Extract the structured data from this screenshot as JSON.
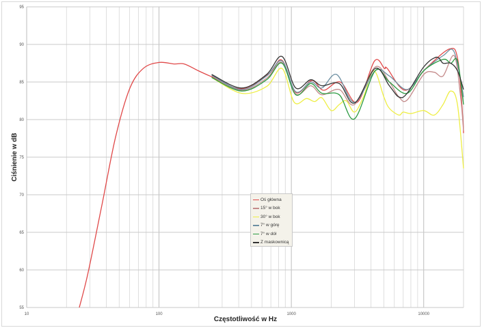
{
  "chart_data": {
    "type": "line",
    "title": "",
    "xlabel": "Częstotliwość w Hz",
    "ylabel": "Ciśnienie w dB",
    "x_scale": "log",
    "xlim": [
      10,
      20000
    ],
    "ylim": [
      55,
      95
    ],
    "x_ticks": [
      "10",
      "100",
      "1000",
      "10000"
    ],
    "y_ticks": [
      "55",
      "60",
      "65",
      "70",
      "75",
      "80",
      "85",
      "90",
      "95"
    ],
    "grid": true,
    "legend_position": "center",
    "series": [
      {
        "name": "Oś główna",
        "color": "#e04848",
        "x": [
          25,
          29,
          37,
          47,
          60,
          76,
          100,
          130,
          155,
          198,
          250,
          420,
          675,
          850,
          1084,
          1430,
          1750,
          2340,
          3150,
          4250,
          5050,
          5300,
          7270,
          10400,
          15700,
          18100,
          19700,
          20000
        ],
        "y": [
          55,
          59.5,
          68.6,
          77.7,
          84.1,
          86.8,
          87.6,
          87.4,
          87.4,
          86.5,
          85.7,
          84.1,
          86.1,
          87.9,
          83.6,
          85.2,
          83.9,
          85.0,
          82.3,
          87.8,
          86.8,
          86.8,
          83.9,
          86.8,
          89.4,
          88.0,
          80.5,
          78.2
        ]
      },
      {
        "name": "15° w bok",
        "color": "#c48a8a",
        "x": [
          250,
          420,
          650,
          850,
          1080,
          1400,
          1700,
          2300,
          3000,
          4300,
          5500,
          6500,
          7500,
          10000,
          12000,
          14000,
          17000,
          19000,
          20000
        ],
        "y": [
          85.8,
          83.9,
          85.5,
          87.6,
          83.4,
          84.5,
          83.3,
          84.0,
          82.0,
          87.0,
          85.0,
          83.0,
          82.6,
          86.0,
          86.3,
          85.8,
          88.5,
          83.0,
          78.5
        ]
      },
      {
        "name": "30° w bok",
        "color": "#eeee44",
        "x": [
          250,
          420,
          650,
          850,
          1050,
          1300,
          1500,
          1700,
          2000,
          2300,
          2600,
          3000,
          3500,
          4200,
          5000,
          5500,
          6500,
          7000,
          8000,
          10000,
          12000,
          14000,
          16000,
          18000,
          20000
        ],
        "y": [
          85.6,
          83.5,
          84.4,
          86.8,
          82.3,
          82.8,
          82.4,
          82.9,
          81.2,
          82.0,
          82.5,
          81.0,
          83.0,
          86.5,
          83.0,
          81.5,
          80.6,
          81.0,
          80.8,
          81.2,
          80.6,
          82.0,
          83.8,
          82.0,
          73.5
        ]
      },
      {
        "name": "7° w górę",
        "color": "#6c8fa2",
        "x": [
          250,
          420,
          650,
          850,
          1080,
          1400,
          1700,
          2200,
          3000,
          4300,
          5500,
          7500,
          10000,
          14000,
          17000,
          20000
        ],
        "y": [
          85.9,
          84.0,
          85.8,
          87.8,
          83.7,
          85.0,
          84.2,
          86.0,
          82.3,
          86.5,
          85.8,
          84.0,
          86.5,
          88.5,
          89.0,
          83.0
        ]
      },
      {
        "name": "7° w dół",
        "color": "#2a9a40",
        "x": [
          250,
          420,
          650,
          850,
          1080,
          1400,
          1700,
          2300,
          3000,
          4300,
          5500,
          7500,
          10000,
          14000,
          16000,
          18000,
          20000
        ],
        "y": [
          85.6,
          83.8,
          85.3,
          87.5,
          83.3,
          84.8,
          83.5,
          83.3,
          80.1,
          86.5,
          85.0,
          83.5,
          86.5,
          88.0,
          87.5,
          87.8,
          82.0
        ]
      },
      {
        "name": "Z maskownicą",
        "color": "#333333",
        "x": [
          250,
          420,
          650,
          850,
          1080,
          1400,
          1700,
          2300,
          3000,
          4300,
          5500,
          6500,
          7500,
          10000,
          12500,
          14000,
          16000,
          18000,
          20000
        ],
        "y": [
          86.0,
          84.2,
          86.0,
          88.4,
          84.2,
          85.3,
          84.5,
          84.8,
          82.2,
          86.8,
          84.5,
          83.0,
          83.5,
          87.0,
          88.3,
          87.5,
          87.5,
          86.5,
          84.0
        ]
      }
    ]
  }
}
